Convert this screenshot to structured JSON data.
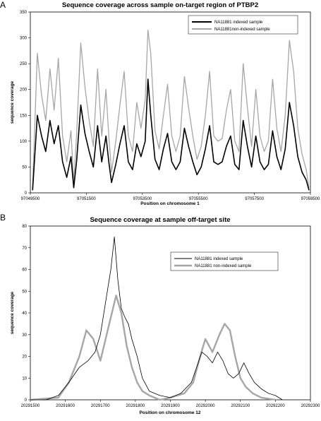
{
  "chart_data": [
    {
      "type": "line",
      "panel": "A",
      "title": "Sequence coverage across sample on-target region of PTBP2",
      "xlabel": "Position on chromosome  1",
      "ylabel": "sequence coverage",
      "xlim": [
        97049500,
        97059500
      ],
      "ylim": [
        0,
        350
      ],
      "x_ticks": [
        97049500,
        97051500,
        97053500,
        97055500,
        97057500,
        97059500
      ],
      "y_ticks": [
        0,
        50,
        100,
        150,
        200,
        250,
        300,
        350
      ],
      "legend_position": "top-right",
      "grid": false,
      "series": [
        {
          "name": "NA11881 indexed sample",
          "color": "#000000",
          "x": [
            97049580,
            97049750,
            97049900,
            97050050,
            97050200,
            97050350,
            97050500,
            97050650,
            97050800,
            97050950,
            97051050,
            97051150,
            97051300,
            97051450,
            97051600,
            97051750,
            97051900,
            97052050,
            97052200,
            97052300,
            97052400,
            97052550,
            97052700,
            97052850,
            97053000,
            97053150,
            97053300,
            97053450,
            97053600,
            97053700,
            97053800,
            97053950,
            97054100,
            97054250,
            97054400,
            97054550,
            97054700,
            97054850,
            97055000,
            97055150,
            97055300,
            97055450,
            97055600,
            97055750,
            97055900,
            97056050,
            97056200,
            97056350,
            97056500,
            97056650,
            97056800,
            97056950,
            97057100,
            97057250,
            97057400,
            97057550,
            97057700,
            97057850,
            97058000,
            97058150,
            97058300,
            97058450,
            97058600,
            97058750,
            97058900,
            97059050,
            97059200,
            97059350,
            97059450
          ],
          "y": [
            5,
            150,
            110,
            80,
            140,
            95,
            130,
            60,
            30,
            70,
            10,
            60,
            170,
            115,
            80,
            50,
            130,
            60,
            110,
            60,
            20,
            55,
            95,
            130,
            60,
            45,
            95,
            70,
            100,
            220,
            150,
            65,
            45,
            85,
            115,
            60,
            45,
            60,
            125,
            90,
            60,
            35,
            50,
            85,
            130,
            60,
            55,
            60,
            90,
            110,
            55,
            45,
            140,
            90,
            50,
            110,
            60,
            45,
            55,
            120,
            70,
            45,
            85,
            175,
            130,
            70,
            40,
            25,
            5
          ]
        },
        {
          "name": "NA11881non-indexed sample",
          "color": "#a6a6a6",
          "x": [
            97049580,
            97049750,
            97049900,
            97050050,
            97050200,
            97050350,
            97050500,
            97050650,
            97050800,
            97050950,
            97051050,
            97051150,
            97051300,
            97051450,
            97051600,
            97051750,
            97051900,
            97052050,
            97052200,
            97052300,
            97052400,
            97052550,
            97052700,
            97052850,
            97053000,
            97053150,
            97053300,
            97053450,
            97053600,
            97053700,
            97053800,
            97053950,
            97054100,
            97054250,
            97054400,
            97054550,
            97054700,
            97054850,
            97055000,
            97055150,
            97055300,
            97055450,
            97055600,
            97055750,
            97055900,
            97056050,
            97056200,
            97056350,
            97056500,
            97056650,
            97056800,
            97056950,
            97057100,
            97057250,
            97057400,
            97057550,
            97057700,
            97057850,
            97058000,
            97058150,
            97058300,
            97058450,
            97058600,
            97058750,
            97058900,
            97059050,
            97059200,
            97059350,
            97059450
          ],
          "y": [
            10,
            270,
            190,
            140,
            240,
            160,
            260,
            110,
            60,
            120,
            20,
            110,
            290,
            205,
            140,
            90,
            240,
            110,
            200,
            110,
            40,
            100,
            170,
            235,
            110,
            80,
            175,
            125,
            180,
            315,
            270,
            120,
            85,
            150,
            210,
            110,
            80,
            110,
            225,
            165,
            110,
            65,
            90,
            150,
            235,
            110,
            100,
            105,
            160,
            200,
            100,
            80,
            250,
            165,
            90,
            200,
            110,
            80,
            100,
            220,
            125,
            80,
            150,
            295,
            235,
            125,
            75,
            45,
            10
          ]
        }
      ]
    },
    {
      "type": "line",
      "panel": "B",
      "title": "Sequence coverage at sample off-target site",
      "xlabel": "Position on chromosome 12",
      "ylabel": "sequence coverage",
      "xlim": [
        20291500,
        20292300
      ],
      "ylim": [
        0,
        80
      ],
      "x_ticks": [
        20291500,
        20291600,
        20291700,
        20291800,
        20291900,
        20292000,
        20292100,
        20292200,
        20292300
      ],
      "y_ticks": [
        0,
        10,
        20,
        30,
        40,
        50,
        60,
        70,
        80
      ],
      "legend_position": "center-right",
      "grid": false,
      "series": [
        {
          "name": "NA11881 indexed sample",
          "color": "#000000",
          "x": [
            20291500,
            20291545,
            20291580,
            20291610,
            20291640,
            20291665,
            20291685,
            20291700,
            20291715,
            20291730,
            20291740,
            20291750,
            20291760,
            20291770,
            20291780,
            20291790,
            20291805,
            20291820,
            20291840,
            20291870,
            20291900,
            20291930,
            20291960,
            20291975,
            20291990,
            20292005,
            20292020,
            20292035,
            20292050,
            20292065,
            20292080,
            20292095,
            20292110,
            20292125,
            20292140,
            20292160,
            20292180,
            20292200,
            20292220
          ],
          "y": [
            0,
            0,
            2,
            8,
            15,
            18,
            22,
            30,
            45,
            60,
            75,
            55,
            42,
            38,
            35,
            28,
            20,
            10,
            4,
            2,
            1,
            3,
            8,
            15,
            22,
            20,
            17,
            22,
            18,
            12,
            10,
            12,
            17,
            12,
            8,
            5,
            3,
            2,
            0
          ]
        },
        {
          "name": "NA11881 non-indexed sample",
          "color": "#a6a6a6",
          "x": [
            20291500,
            20291580,
            20291610,
            20291640,
            20291660,
            20291680,
            20291700,
            20291715,
            20291730,
            20291745,
            20291760,
            20291775,
            20291790,
            20291805,
            20291820,
            20291840,
            20291870,
            20291900,
            20291940,
            20291965,
            20291985,
            20292000,
            20292020,
            20292040,
            20292055,
            20292070,
            20292085,
            20292100,
            20292115,
            20292135,
            20292160,
            20292200
          ],
          "y": [
            0,
            1,
            8,
            20,
            32,
            28,
            18,
            28,
            38,
            48,
            40,
            25,
            15,
            8,
            4,
            2,
            0,
            1,
            3,
            8,
            20,
            28,
            22,
            30,
            35,
            32,
            20,
            10,
            6,
            3,
            1,
            0
          ]
        }
      ]
    }
  ]
}
